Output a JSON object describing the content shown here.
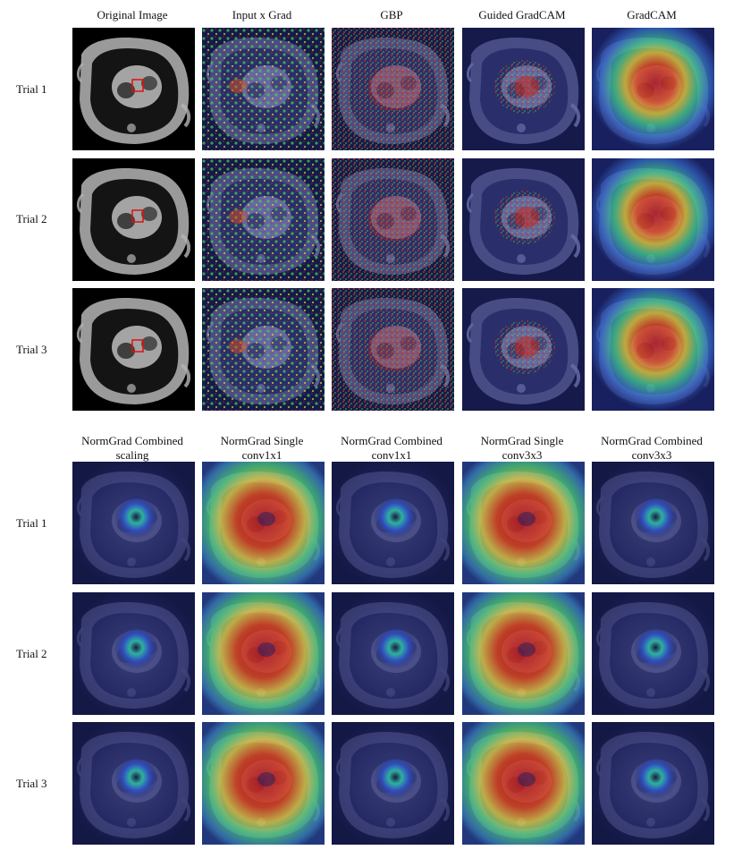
{
  "top_panel": {
    "column_titles": [
      "Original Image",
      "Input x Grad",
      "GBP",
      "Guided GradCAM",
      "GradCAM"
    ],
    "row_labels": [
      "Trial 1",
      "Trial 2",
      "Trial 3"
    ]
  },
  "bottom_panel": {
    "column_titles": [
      [
        "NormGrad Combined",
        "scaling"
      ],
      [
        "NormGrad Single",
        "conv1x1"
      ],
      [
        "NormGrad Combined",
        "conv1x1"
      ],
      [
        "NormGrad Single",
        "conv3x3"
      ],
      [
        "NormGrad Combined",
        "conv3x3"
      ]
    ],
    "row_labels": [
      "Trial 1",
      "Trial 2",
      "Trial 3"
    ]
  },
  "colors": {
    "box_marker": "#e01010",
    "heat_low": "#1a2a8a",
    "heat_mid": "#2fd05a",
    "heat_high": "#d01010"
  }
}
